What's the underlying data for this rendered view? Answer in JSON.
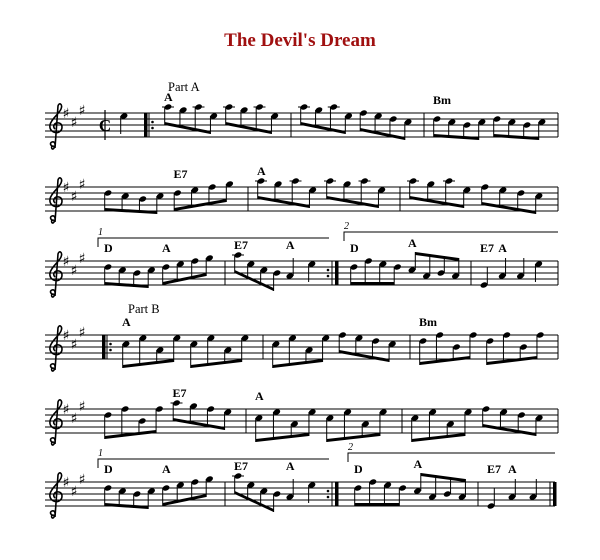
{
  "title": "The Devil's Dream",
  "title_color": "#a01010",
  "key_signature": [
    "F5",
    "C5",
    "G5"
  ],
  "time_signature": "cut-time",
  "clef": "treble-clef",
  "rows": [
    {
      "part_label": "Part A",
      "pickup": [
        "E5:4"
      ],
      "measures": [
        {
          "start": "repeat-start",
          "notes": [
            "A5",
            "G5",
            "A5",
            "E5",
            "A5",
            "G5",
            "A5",
            "E5"
          ],
          "chords": [
            {
              "at": 0,
              "label": "A"
            }
          ]
        },
        {
          "notes": [
            "A5",
            "G5",
            "A5",
            "E5",
            "F5",
            "E5",
            "D5",
            "C5"
          ],
          "chords": []
        },
        {
          "notes": [
            "D5",
            "C5",
            "B4",
            "C5",
            "D5",
            "C5",
            "B4",
            "C5"
          ],
          "chords": [
            {
              "at": 0,
              "label": "Bm"
            }
          ]
        }
      ]
    },
    {
      "measures": [
        {
          "notes": [
            "D5",
            "C5",
            "B4",
            "C5",
            "D5",
            "E5",
            "F5",
            "G5"
          ],
          "chords": [
            {
              "at": 4,
              "label": "E7"
            }
          ]
        },
        {
          "notes": [
            "A5",
            "G5",
            "A5",
            "E5",
            "A5",
            "G5",
            "A5",
            "E5"
          ],
          "chords": [
            {
              "at": 0,
              "label": "A"
            }
          ]
        },
        {
          "notes": [
            "A5",
            "G5",
            "A5",
            "E5",
            "F5",
            "E5",
            "D5",
            "C5"
          ],
          "chords": []
        }
      ]
    },
    {
      "voltas": [
        {
          "label": "1",
          "from": 0,
          "to": 1
        },
        {
          "label": "2",
          "from": 2,
          "to": 3
        }
      ],
      "measures": [
        {
          "notes": [
            "D5",
            "C5",
            "B4",
            "C5",
            "D5",
            "E5",
            "F5",
            "G5"
          ],
          "chords": [
            {
              "at": 0,
              "label": "D"
            },
            {
              "at": 4,
              "label": "A"
            }
          ]
        },
        {
          "end": "repeat-end",
          "notes": [
            "A5",
            "E5",
            "C5",
            "B4",
            "A4:4",
            "E5:4"
          ],
          "chords": [
            {
              "at": 0,
              "label": "E7"
            },
            {
              "at": 4,
              "label": "A"
            }
          ]
        },
        {
          "notes": [
            "D5",
            "F5",
            "E5",
            "D5",
            "C5",
            "A4",
            "B4",
            "A4"
          ],
          "chords": [
            {
              "at": 0,
              "label": "D"
            },
            {
              "at": 4,
              "label": "A"
            }
          ]
        },
        {
          "notes": [
            "E4:4",
            "A4:4",
            "A4:4",
            "E5:4"
          ],
          "chords": [
            {
              "at": 0,
              "label": "E7"
            },
            {
              "at": 1,
              "label": "A"
            }
          ]
        }
      ]
    },
    {
      "part_label": "Part B",
      "measures": [
        {
          "start": "repeat-start",
          "notes": [
            "C5",
            "E5",
            "A4",
            "E5",
            "C5",
            "E5",
            "A4",
            "E5"
          ],
          "chords": [
            {
              "at": 0,
              "label": "A"
            }
          ]
        },
        {
          "notes": [
            "C5",
            "E5",
            "A4",
            "E5",
            "F5",
            "E5",
            "D5",
            "C5"
          ],
          "chords": []
        },
        {
          "notes": [
            "D5",
            "F5",
            "B4",
            "F5",
            "D5",
            "F5",
            "B4",
            "F5"
          ],
          "chords": [
            {
              "at": 0,
              "label": "Bm"
            }
          ]
        }
      ]
    },
    {
      "measures": [
        {
          "notes": [
            "D5",
            "F5",
            "B4",
            "F5",
            "A5",
            "G5",
            "F5",
            "E5"
          ],
          "chords": [
            {
              "at": 4,
              "label": "E7"
            }
          ]
        },
        {
          "notes": [
            "C5",
            "E5",
            "A4",
            "E5",
            "C5",
            "E5",
            "A4",
            "E5"
          ],
          "chords": [
            {
              "at": 0,
              "label": "A"
            }
          ]
        },
        {
          "notes": [
            "C5",
            "E5",
            "A4",
            "E5",
            "F5",
            "E5",
            "D5",
            "C5"
          ],
          "chords": []
        }
      ]
    },
    {
      "voltas": [
        {
          "label": "1",
          "from": 0,
          "to": 1
        },
        {
          "label": "2",
          "from": 2,
          "to": 3
        }
      ],
      "measures": [
        {
          "notes": [
            "D5",
            "C5",
            "B4",
            "C5",
            "D5",
            "E5",
            "F5",
            "G5"
          ],
          "chords": [
            {
              "at": 0,
              "label": "D"
            },
            {
              "at": 4,
              "label": "A"
            }
          ]
        },
        {
          "end": "repeat-end",
          "notes": [
            "A5",
            "E5",
            "C5",
            "B4",
            "A4:4",
            "E5:4"
          ],
          "chords": [
            {
              "at": 0,
              "label": "E7"
            },
            {
              "at": 4,
              "label": "A"
            }
          ]
        },
        {
          "notes": [
            "D5",
            "F5",
            "E5",
            "D5",
            "C5",
            "A4",
            "B4",
            "A4"
          ],
          "chords": [
            {
              "at": 0,
              "label": "D"
            },
            {
              "at": 4,
              "label": "A"
            }
          ]
        },
        {
          "end": "final",
          "notes": [
            "E4:4",
            "A4:4",
            "A4:4"
          ],
          "chords": [
            {
              "at": 0,
              "label": "E7"
            },
            {
              "at": 1,
              "label": "A"
            }
          ]
        }
      ]
    }
  ]
}
